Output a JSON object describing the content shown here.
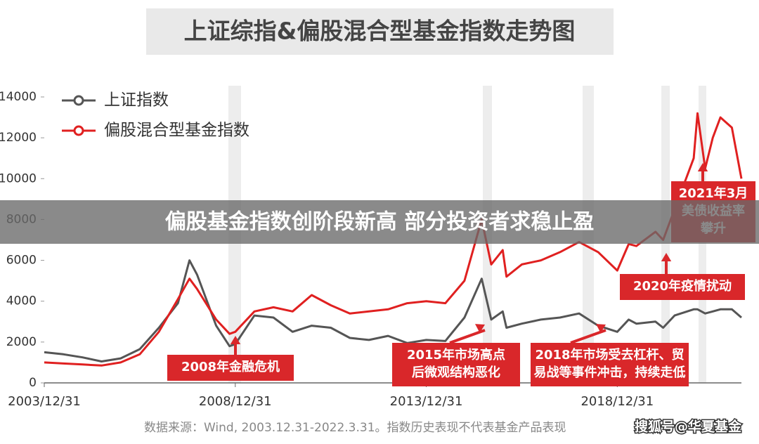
{
  "chart_data": {
    "type": "line",
    "title": "上证综指&偏股混合型基金指数走势图",
    "x": [
      2004.0,
      2004.5,
      2005.0,
      2005.5,
      2006.0,
      2006.5,
      2007.0,
      2007.5,
      2007.8,
      2008.0,
      2008.5,
      2008.85,
      2009.0,
      2009.5,
      2010.0,
      2010.5,
      2011.0,
      2011.5,
      2012.0,
      2012.5,
      2013.0,
      2013.5,
      2014.0,
      2014.5,
      2015.0,
      2015.45,
      2015.7,
      2016.0,
      2016.1,
      2016.5,
      2017.0,
      2017.5,
      2018.0,
      2018.5,
      2019.0,
      2019.3,
      2019.5,
      2020.0,
      2020.2,
      2020.5,
      2021.0,
      2021.1,
      2021.3,
      2021.5,
      2021.7,
      2022.0,
      2022.25
    ],
    "series": [
      {
        "name": "上证指数",
        "color": "#555555",
        "values": [
          1500,
          1400,
          1250,
          1050,
          1200,
          1650,
          2700,
          3900,
          6000,
          5300,
          2800,
          1800,
          1900,
          3300,
          3200,
          2500,
          2800,
          2700,
          2200,
          2100,
          2300,
          1950,
          2100,
          2050,
          3200,
          5100,
          3100,
          3500,
          2700,
          2900,
          3100,
          3200,
          3400,
          2800,
          2500,
          3100,
          2900,
          3000,
          2700,
          3300,
          3600,
          3600,
          3400,
          3500,
          3600,
          3600,
          3200
        ]
      },
      {
        "name": "偏股混合型基金指数",
        "color": "#e02020",
        "values": [
          1000,
          950,
          900,
          850,
          1000,
          1400,
          2500,
          4100,
          5100,
          4600,
          3100,
          2400,
          2500,
          3500,
          3700,
          3500,
          4300,
          3800,
          3400,
          3500,
          3600,
          3900,
          4000,
          3900,
          5000,
          8000,
          5800,
          6500,
          5200,
          5800,
          6000,
          6400,
          6900,
          6400,
          5500,
          6800,
          6700,
          7400,
          7000,
          8500,
          11000,
          13200,
          10500,
          12000,
          13000,
          12500,
          10000
        ]
      }
    ],
    "xlim": [
      2004.0,
      2022.25
    ],
    "xticks": [
      {
        "value": 2004.0,
        "label": "2003/12/31"
      },
      {
        "value": 2009.0,
        "label": "2008/12/31"
      },
      {
        "value": 2014.0,
        "label": "2013/12/31"
      },
      {
        "value": 2019.0,
        "label": "2018/12/31"
      }
    ],
    "ylim": [
      0,
      14000
    ],
    "yticks": [
      0,
      2000,
      4000,
      6000,
      8000,
      10000,
      12000,
      14000
    ],
    "annotations": [
      [
        "2008年金融危机"
      ],
      [
        "2015年市场高点",
        "后微观结构恶化"
      ],
      [
        "2018年市场受去杠杆、贸",
        "易战等事件冲击，持续走低"
      ],
      [
        "2020年疫情扰动"
      ],
      [
        "2021年3月",
        "美债收益率",
        "攀升"
      ]
    ],
    "source": "数据来源：Wind, 2003.12.31-2022.3.31。指数历史表现不代表基金产品表现"
  },
  "overlay_headline": "偏股基金指数创阶段新高 部分投资者求稳止盈",
  "watermark": "搜狐号@华夏基金"
}
